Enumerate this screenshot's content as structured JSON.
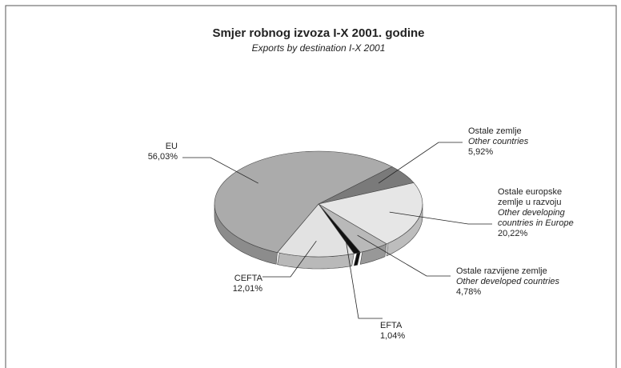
{
  "chart_data": {
    "type": "pie",
    "title": "Smjer robnog izvoza I-X 2001. godine",
    "subtitle": "Exports by destination I-X 2001",
    "categories": [
      "Ostale zemlje",
      "Ostale europske\nzemlje u razvoju",
      "Ostale razvijene zemlje",
      "EFTA",
      "CEFTA",
      "EU"
    ],
    "categories_en": [
      "Other countries",
      "Other developing\ncountries in Europe",
      "Other developed countries",
      "",
      "",
      ""
    ],
    "values": [
      5.92,
      20.22,
      4.78,
      1.04,
      12.01,
      56.03
    ],
    "value_labels": [
      "5,92%",
      "20,22%",
      "4,78%",
      "1,04%",
      "12,01%",
      "56,03%"
    ],
    "colors": [
      "#7a7a7a",
      "#e6e6e6",
      "#b9b9b9",
      "#111111",
      "#e2e2e2",
      "#ababab"
    ]
  }
}
